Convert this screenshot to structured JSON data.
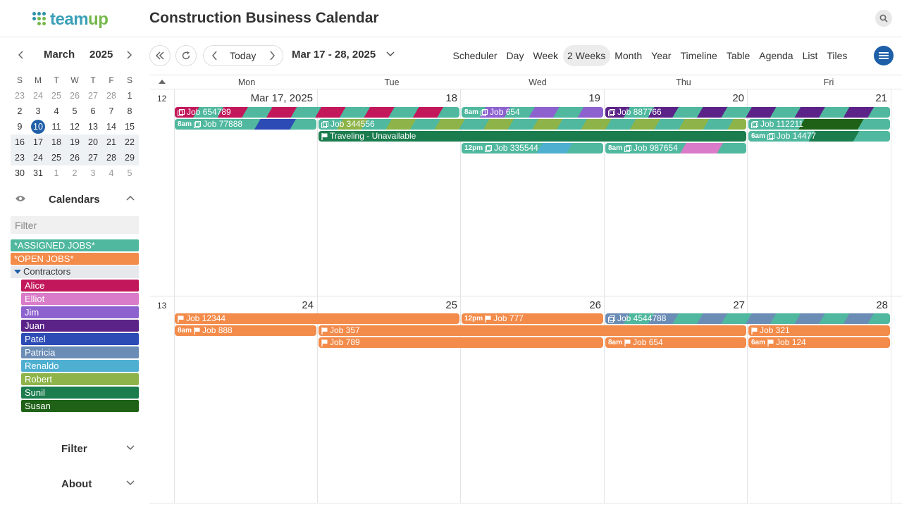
{
  "header": {
    "logo_main": "team",
    "logo_accent": "up",
    "title": "Construction Business Calendar"
  },
  "mini_calendar": {
    "month": "March",
    "year": "2025",
    "dow": [
      "S",
      "M",
      "T",
      "W",
      "T",
      "F",
      "S"
    ],
    "rows": [
      [
        "23",
        "24",
        "25",
        "26",
        "27",
        "28",
        "1"
      ],
      [
        "2",
        "3",
        "4",
        "5",
        "6",
        "7",
        "8"
      ],
      [
        "9",
        "10",
        "11",
        "12",
        "13",
        "14",
        "15"
      ],
      [
        "16",
        "17",
        "18",
        "19",
        "20",
        "21",
        "22"
      ],
      [
        "23",
        "24",
        "25",
        "26",
        "27",
        "28",
        "29"
      ],
      [
        "30",
        "31",
        "1",
        "2",
        "3",
        "4",
        "5"
      ]
    ],
    "today": "10"
  },
  "calendars_panel": {
    "title": "Calendars",
    "filter_placeholder": "Filter",
    "assigned": "*ASSIGNED JOBS*",
    "open": "*OPEN JOBS*",
    "group": "Contractors",
    "contractors": [
      "Alice",
      "Elliot",
      "Jim",
      "Juan",
      "Patel",
      "Patricia",
      "Renaldo",
      "Robert",
      "Sunil",
      "Susan"
    ],
    "colors": {
      "assigned": "#4fb89e",
      "open": "#f38b4a",
      "Alice": "#c2185b",
      "Elliot": "#d97bc9",
      "Jim": "#8d62cf",
      "Juan": "#5b2388",
      "Patel": "#2d4bb5",
      "Patricia": "#6b8db5",
      "Renaldo": "#4eafd1",
      "Robert": "#8eb449",
      "Sunil": "#1b7c4e",
      "Susan": "#1e6117"
    }
  },
  "sidebar_accordions": {
    "filter": "Filter",
    "about": "About"
  },
  "toolbar": {
    "today": "Today",
    "range": "Mar 17 - 28, 2025",
    "views": [
      "Scheduler",
      "Day",
      "Week",
      "2 Weeks",
      "Month",
      "Year",
      "Timeline",
      "Table",
      "Agenda",
      "List",
      "Tiles"
    ],
    "active_view": "2 Weeks"
  },
  "grid": {
    "weekdays": [
      "Mon",
      "Tue",
      "Wed",
      "Thu",
      "Fri"
    ],
    "weeks": [
      {
        "week_no": "12",
        "days": [
          "Mar 17, 2025",
          "18",
          "19",
          "20",
          "21"
        ]
      },
      {
        "week_no": "13",
        "days": [
          "24",
          "25",
          "26",
          "27",
          "28"
        ]
      }
    ]
  },
  "events": {
    "w1": [
      {
        "time": "",
        "title": "Job 654789",
        "icon": "copy-icon"
      },
      {
        "time": "8am",
        "title": "Job 654",
        "icon": "copy-icon"
      },
      {
        "time": "",
        "title": "Job 887766",
        "icon": "copy-icon"
      },
      {
        "time": "8am",
        "title": "Job 77888",
        "icon": "copy-icon"
      },
      {
        "time": "",
        "title": "Job 344556",
        "icon": "copy-icon"
      },
      {
        "time": "",
        "title": "Job 112211",
        "icon": "copy-icon"
      },
      {
        "time": "",
        "title": "Traveling - Unavailable",
        "icon": "flag-icon"
      },
      {
        "time": "6am",
        "title": "Job 14477",
        "icon": "copy-icon"
      },
      {
        "time": "12pm",
        "title": "Job 335544",
        "icon": "copy-icon"
      },
      {
        "time": "8am",
        "title": "Job 987654",
        "icon": "copy-icon"
      }
    ],
    "w2": [
      {
        "time": "",
        "title": "Job 12344",
        "icon": "flag-icon"
      },
      {
        "time": "12pm",
        "title": "Job 777",
        "icon": "flag-icon"
      },
      {
        "time": "",
        "title": "Job 4544788",
        "icon": "copy-icon"
      },
      {
        "time": "8am",
        "title": "Job 888",
        "icon": "flag-icon"
      },
      {
        "time": "",
        "title": "Job 357",
        "icon": "flag-icon"
      },
      {
        "time": "",
        "title": "Job 321",
        "icon": "flag-icon"
      },
      {
        "time": "",
        "title": "Job 789",
        "icon": "flag-icon"
      },
      {
        "time": "8am",
        "title": "Job 654",
        "icon": "flag-icon"
      },
      {
        "time": "6am",
        "title": "Job 124",
        "icon": "flag-icon"
      }
    ]
  }
}
